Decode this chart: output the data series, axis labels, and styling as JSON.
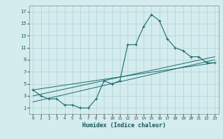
{
  "xlabel": "Humidex (Indice chaleur)",
  "background_color": "#d4ecee",
  "grid_color": "#b8d8dc",
  "line_color": "#1a6b6b",
  "xlim": [
    -0.5,
    23.5
  ],
  "ylim": [
    0,
    18
  ],
  "xticks": [
    0,
    1,
    2,
    3,
    4,
    5,
    6,
    7,
    8,
    9,
    10,
    11,
    12,
    13,
    14,
    15,
    16,
    17,
    18,
    19,
    20,
    21,
    22,
    23
  ],
  "yticks": [
    1,
    3,
    5,
    7,
    9,
    11,
    13,
    15,
    17
  ],
  "series1_x": [
    0,
    1,
    2,
    3,
    4,
    5,
    6,
    7,
    8,
    9,
    10,
    11,
    12,
    13,
    14,
    15,
    16,
    17,
    18,
    19,
    20,
    21,
    22,
    23
  ],
  "series1_y": [
    4,
    3,
    2.5,
    2.5,
    1.5,
    1.5,
    1,
    1,
    2.5,
    5.5,
    5,
    5.5,
    11.5,
    11.5,
    14.5,
    16.5,
    15.5,
    12.5,
    11,
    10.5,
    9.5,
    9.5,
    8.5,
    8.5
  ],
  "series2_x": [
    0,
    23
  ],
  "series2_y": [
    2,
    9
  ],
  "series3_x": [
    0,
    23
  ],
  "series3_y": [
    3,
    9.5
  ],
  "series4_x": [
    0,
    23
  ],
  "series4_y": [
    4,
    8.5
  ]
}
